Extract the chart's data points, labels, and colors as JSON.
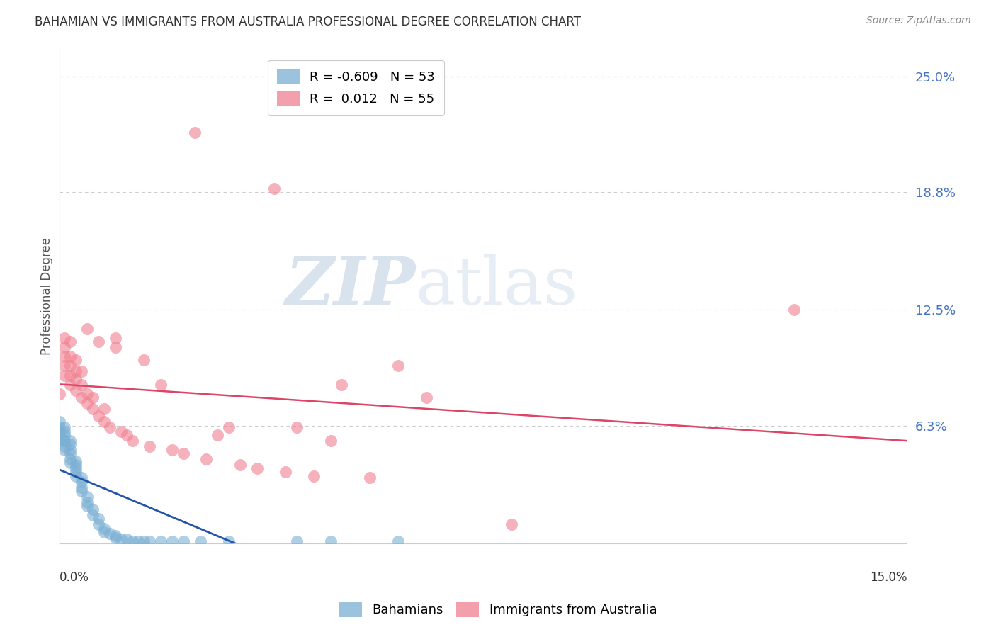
{
  "title": "BAHAMIAN VS IMMIGRANTS FROM AUSTRALIA PROFESSIONAL DEGREE CORRELATION CHART",
  "source": "Source: ZipAtlas.com",
  "ylabel": "Professional Degree",
  "ytick_labels": [
    "25.0%",
    "18.8%",
    "12.5%",
    "6.3%"
  ],
  "ytick_values": [
    0.25,
    0.188,
    0.125,
    0.063
  ],
  "xlim": [
    0.0,
    0.15
  ],
  "ylim": [
    0.0,
    0.265
  ],
  "bahamians_x": [
    0.0,
    0.0,
    0.0,
    0.0,
    0.0,
    0.001,
    0.001,
    0.001,
    0.001,
    0.001,
    0.001,
    0.001,
    0.002,
    0.002,
    0.002,
    0.002,
    0.002,
    0.002,
    0.003,
    0.003,
    0.003,
    0.003,
    0.003,
    0.004,
    0.004,
    0.004,
    0.004,
    0.005,
    0.005,
    0.005,
    0.006,
    0.006,
    0.007,
    0.007,
    0.008,
    0.008,
    0.009,
    0.01,
    0.01,
    0.011,
    0.012,
    0.013,
    0.014,
    0.015,
    0.016,
    0.018,
    0.02,
    0.022,
    0.025,
    0.03,
    0.042,
    0.048,
    0.06
  ],
  "bahamians_y": [
    0.055,
    0.058,
    0.06,
    0.062,
    0.065,
    0.05,
    0.055,
    0.058,
    0.06,
    0.062,
    0.055,
    0.052,
    0.048,
    0.05,
    0.053,
    0.055,
    0.045,
    0.043,
    0.04,
    0.042,
    0.044,
    0.038,
    0.036,
    0.035,
    0.033,
    0.03,
    0.028,
    0.025,
    0.022,
    0.02,
    0.018,
    0.015,
    0.013,
    0.01,
    0.008,
    0.006,
    0.005,
    0.004,
    0.003,
    0.002,
    0.002,
    0.001,
    0.001,
    0.001,
    0.001,
    0.001,
    0.001,
    0.001,
    0.001,
    0.001,
    0.001,
    0.001,
    0.001
  ],
  "australia_x": [
    0.0,
    0.001,
    0.001,
    0.001,
    0.001,
    0.001,
    0.002,
    0.002,
    0.002,
    0.002,
    0.002,
    0.003,
    0.003,
    0.003,
    0.003,
    0.004,
    0.004,
    0.004,
    0.005,
    0.005,
    0.005,
    0.006,
    0.006,
    0.007,
    0.007,
    0.008,
    0.008,
    0.009,
    0.01,
    0.01,
    0.011,
    0.012,
    0.013,
    0.015,
    0.016,
    0.018,
    0.02,
    0.022,
    0.024,
    0.026,
    0.028,
    0.03,
    0.032,
    0.035,
    0.038,
    0.04,
    0.042,
    0.045,
    0.048,
    0.05,
    0.055,
    0.06,
    0.065,
    0.08,
    0.13
  ],
  "australia_y": [
    0.08,
    0.09,
    0.095,
    0.1,
    0.105,
    0.11,
    0.085,
    0.09,
    0.095,
    0.1,
    0.108,
    0.082,
    0.088,
    0.092,
    0.098,
    0.078,
    0.085,
    0.092,
    0.075,
    0.08,
    0.115,
    0.072,
    0.078,
    0.068,
    0.108,
    0.065,
    0.072,
    0.062,
    0.11,
    0.105,
    0.06,
    0.058,
    0.055,
    0.098,
    0.052,
    0.085,
    0.05,
    0.048,
    0.22,
    0.045,
    0.058,
    0.062,
    0.042,
    0.04,
    0.19,
    0.038,
    0.062,
    0.036,
    0.055,
    0.085,
    0.035,
    0.095,
    0.078,
    0.01,
    0.125
  ],
  "blue_color": "#7bafd4",
  "pink_color": "#f08090",
  "blue_line_color": "#2255aa",
  "pink_line_color": "#dd4466",
  "watermark_zip": "ZIP",
  "watermark_atlas": "atlas",
  "background_color": "#ffffff",
  "grid_color": "#cccccc",
  "title_color": "#333333",
  "source_color": "#888888",
  "ylabel_color": "#555555",
  "tick_label_color": "#4472c4"
}
